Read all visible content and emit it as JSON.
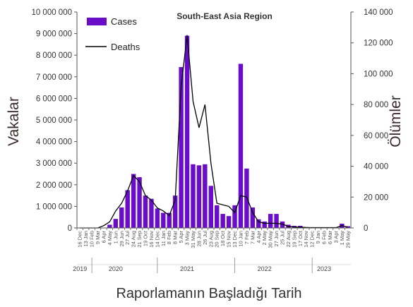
{
  "chart_data": {
    "type": "bar",
    "title": "South-East Asia Region",
    "xlabel": "Raporlamanın Başladığı Tarih",
    "ylabel": "Vakalar",
    "y2label": "Ölümler",
    "ylim": [
      0,
      10000000
    ],
    "y2lim": [
      0,
      140000
    ],
    "yticks": [
      "0",
      "1 000 000",
      "2 000 000",
      "3 000 000",
      "4 000 000",
      "5 000 000",
      "6 000 000",
      "7 000 000",
      "8 000 000",
      "9 000 000",
      "10 000 000"
    ],
    "y2ticks": [
      "0",
      "20 000",
      "40 000",
      "60 000",
      "80 000",
      "100 000",
      "120 000",
      "140 000"
    ],
    "legend": [
      "Cases",
      "Deaths"
    ],
    "legend_position": "top-left",
    "colors": {
      "bars": "#6a0dc9",
      "line": "#000000",
      "axis": "#555555"
    },
    "categories": [
      "16 Dec",
      "13 Jan",
      "10 Feb",
      "9 Mar",
      "6 Apr",
      "4 May",
      "1 Jun",
      "29 Jun",
      "27 Jul",
      "24 Aug",
      "21 Sep",
      "19 Oct",
      "16 Nov",
      "14 Dec",
      "11 Jan",
      "8 Feb",
      "8 Mar",
      "5 Apr",
      "3 May",
      "31 May",
      "28 Jun",
      "26 Jul",
      "23 Aug",
      "20 Sep",
      "18 Oct",
      "15 Nov",
      "13 Dec",
      "10 Jan",
      "7 Feb",
      "7 Mar",
      "4 Apr",
      "2 May",
      "30 May",
      "27 Jun",
      "25 Jul",
      "22 Aug",
      "19 Sep",
      "17 Oct",
      "14 Nov",
      "12 Dec",
      "9 Jan",
      "6 Feb",
      "6 Mar",
      "3 Apr",
      "1 May",
      "29 May"
    ],
    "years": [
      {
        "label": "2019",
        "at": 0
      },
      {
        "label": "2020",
        "at": 6
      },
      {
        "label": "2021",
        "at": 18
      },
      {
        "label": "2022",
        "at": 31
      },
      {
        "label": "2023",
        "at": 41
      }
    ],
    "year_separators": [
      2,
      13,
      26,
      39
    ],
    "series": [
      {
        "name": "Cases",
        "type": "bar",
        "values": [
          0,
          0,
          0,
          0,
          0,
          150000,
          420000,
          950000,
          1750000,
          2500000,
          2350000,
          1500000,
          1350000,
          900000,
          700000,
          700000,
          1500000,
          7450000,
          8900000,
          2950000,
          2900000,
          2950000,
          1950000,
          1050000,
          650000,
          550000,
          1050000,
          7600000,
          2750000,
          950000,
          400000,
          300000,
          650000,
          650000,
          300000,
          150000,
          100000,
          100000,
          40000,
          20000,
          20000,
          20000,
          20000,
          15000,
          200000,
          80000
        ]
      },
      {
        "name": "Deaths",
        "type": "line",
        "values": [
          0,
          0,
          0,
          0,
          1500,
          4000,
          11000,
          16000,
          24000,
          34000,
          30000,
          21000,
          18000,
          13000,
          11000,
          8000,
          18000,
          92000,
          125000,
          82000,
          65000,
          80000,
          42000,
          16000,
          15000,
          14000,
          10000,
          21000,
          20000,
          10000,
          4000,
          3000,
          3000,
          3000,
          2500,
          1000,
          600,
          500,
          300,
          200,
          200,
          200,
          200,
          200,
          1500,
          500
        ]
      }
    ]
  }
}
